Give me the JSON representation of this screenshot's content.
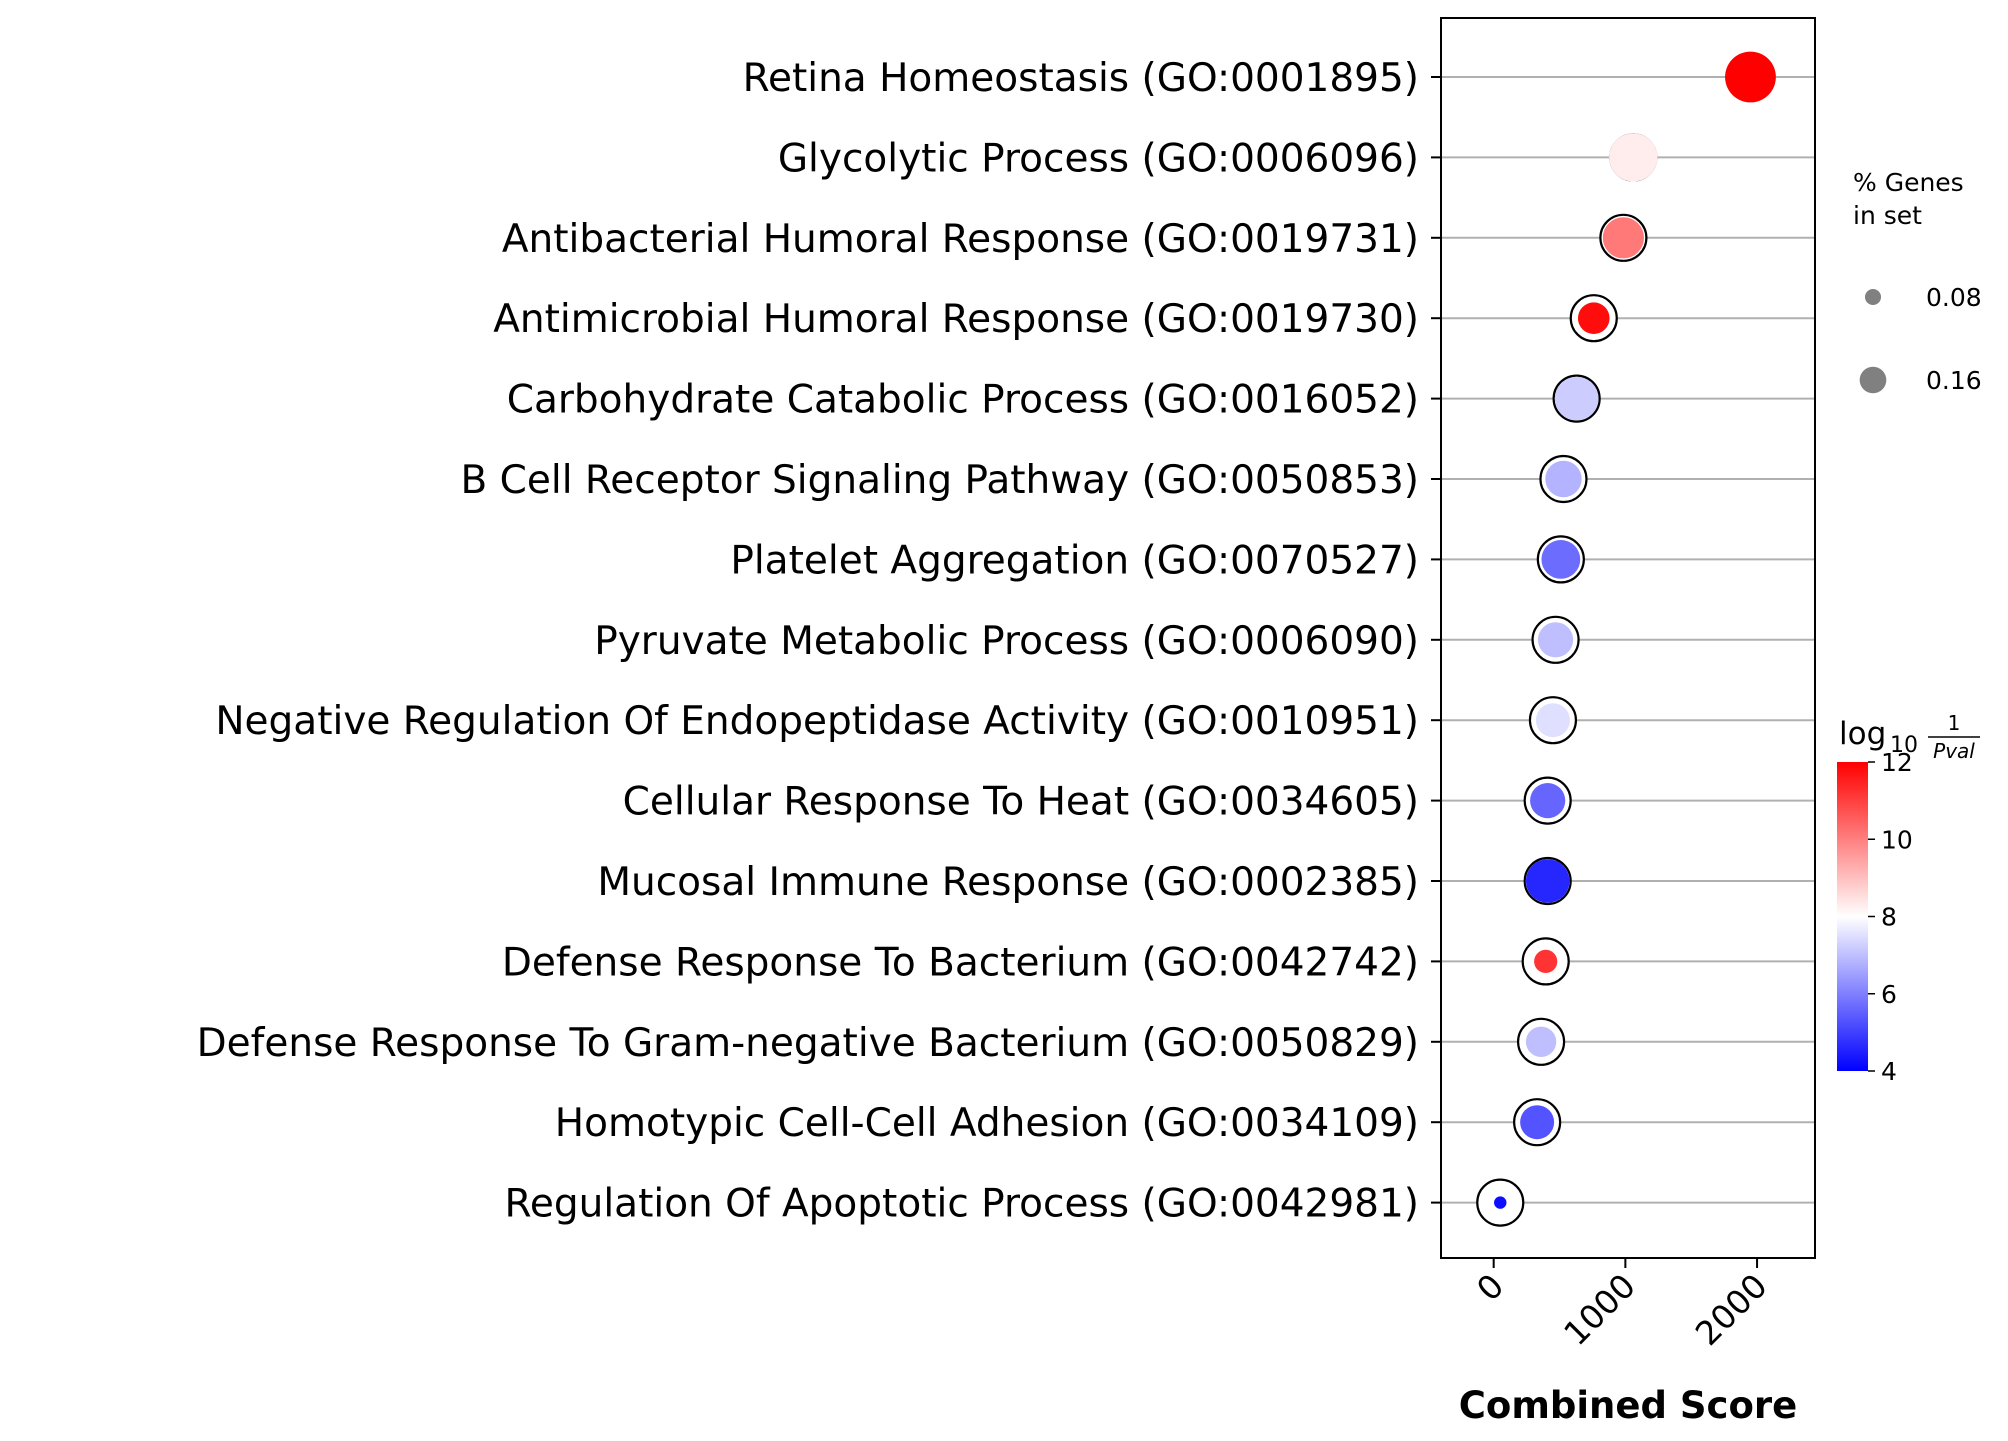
{
  "chart_data": {
    "type": "scatter",
    "xlabel": "Combined Score",
    "xticks": [
      0,
      1000,
      2000
    ],
    "xlim": [
      -400,
      2440
    ],
    "terms": [
      {
        "label": "Retina Homeostasis (GO:0001895)",
        "combined_score": 1950,
        "log10_inv_pval": 12.0,
        "pct_genes": 0.17
      },
      {
        "label": "Glycolytic Process (GO:0006096)",
        "combined_score": 1060,
        "log10_inv_pval": 8.3,
        "pct_genes": 0.16
      },
      {
        "label": "Antibacterial Humoral Response (GO:0019731)",
        "combined_score": 985,
        "log10_inv_pval": 10.1,
        "pct_genes": 0.13
      },
      {
        "label": "Antimicrobial Humoral Response (GO:0019730)",
        "combined_score": 760,
        "log10_inv_pval": 11.8,
        "pct_genes": 0.09
      },
      {
        "label": "Carbohydrate Catabolic Process (GO:0016052)",
        "combined_score": 630,
        "log10_inv_pval": 7.2,
        "pct_genes": 0.14
      },
      {
        "label": "B Cell Receptor Signaling Pathway (GO:0050853)",
        "combined_score": 530,
        "log10_inv_pval": 6.8,
        "pct_genes": 0.11
      },
      {
        "label": "Platelet Aggregation (GO:0070527)",
        "combined_score": 510,
        "log10_inv_pval": 5.7,
        "pct_genes": 0.12
      },
      {
        "label": "Pyruvate Metabolic Process (GO:0006090)",
        "combined_score": 470,
        "log10_inv_pval": 7.0,
        "pct_genes": 0.105
      },
      {
        "label": "Negative Regulation Of Endopeptidase Activity (GO:0010951)",
        "combined_score": 450,
        "log10_inv_pval": 7.5,
        "pct_genes": 0.1
      },
      {
        "label": "Cellular Response To Heat (GO:0034605)",
        "combined_score": 410,
        "log10_inv_pval": 5.6,
        "pct_genes": 0.105
      },
      {
        "label": "Mucosal Immune Response (GO:0002385)",
        "combined_score": 410,
        "log10_inv_pval": 4.6,
        "pct_genes": 0.14
      },
      {
        "label": "Defense Response To Bacterium (GO:0042742)",
        "combined_score": 395,
        "log10_inv_pval": 11.2,
        "pct_genes": 0.055
      },
      {
        "label": "Defense Response To Gram-negative Bacterium (GO:0050829)",
        "combined_score": 360,
        "log10_inv_pval": 7.0,
        "pct_genes": 0.085
      },
      {
        "label": "Homotypic Cell-Cell Adhesion (GO:0034109)",
        "combined_score": 330,
        "log10_inv_pval": 5.3,
        "pct_genes": 0.1
      },
      {
        "label": "Regulation Of Apoptotic Process (GO:0042981)",
        "combined_score": 50,
        "log10_inv_pval": 4.2,
        "pct_genes": 0.01
      }
    ],
    "size_legend": {
      "title_lines": [
        "% Genes",
        "in set"
      ],
      "entries": [
        {
          "label": "0.08",
          "value": 0.08
        },
        {
          "label": "0.16",
          "value": 0.16
        }
      ]
    },
    "colorbar": {
      "title": "log",
      "title_sub": "10",
      "title_num": "1",
      "title_den": "Pval",
      "range": [
        4,
        12
      ],
      "ticks": [
        {
          "label": "4",
          "value": 4
        },
        {
          "label": "6",
          "value": 6
        },
        {
          "label": "8",
          "value": 8
        },
        {
          "label": "10",
          "value": 10
        },
        {
          "label": "12",
          "value": 12
        }
      ],
      "color_low": "#0000ff",
      "color_mid": "#ffffff",
      "color_high": "#ff0000"
    },
    "marker_edge_color": "#000000",
    "grid_line_color": "#b0b0b0",
    "grid": "horizontal"
  }
}
